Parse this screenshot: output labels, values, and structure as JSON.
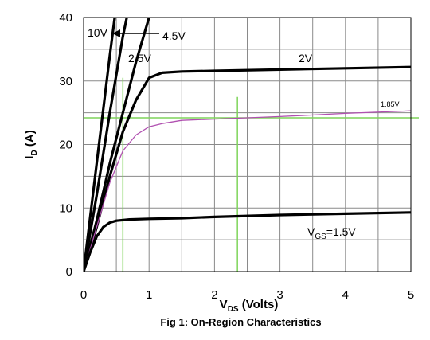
{
  "chart_data": {
    "type": "line",
    "title": "Fig 1: On-Region Characteristics",
    "xlabel": {
      "main": "V",
      "sub": "DS",
      "rest": " (Volts)"
    },
    "ylabel": {
      "main": "I",
      "sub": "D",
      "rest": " (A)"
    },
    "xlim": [
      0,
      5
    ],
    "ylim": [
      0,
      40
    ],
    "x_ticks": [
      "0",
      "1",
      "2",
      "3",
      "4",
      "5"
    ],
    "y_ticks": [
      "0",
      "10",
      "20",
      "30",
      "40"
    ],
    "grid": true,
    "series": [
      {
        "name": "10V",
        "color": "#000000",
        "x": [
          0,
          0.2,
          0.4,
          0.5
        ],
        "y": [
          0,
          17,
          34,
          42
        ]
      },
      {
        "name": "4.5V",
        "color": "#000000",
        "x": [
          0,
          0.2,
          0.4,
          0.6,
          0.7
        ],
        "y": [
          0,
          12,
          25,
          37,
          42
        ]
      },
      {
        "name": "2.5V",
        "color": "#000000",
        "x": [
          0,
          0.2,
          0.4,
          0.6,
          0.8,
          1.0
        ],
        "y": [
          0,
          8,
          17,
          25,
          33,
          40
        ]
      },
      {
        "name": "2V",
        "color": "#000000",
        "x": [
          0,
          0.2,
          0.4,
          0.6,
          0.8,
          1.0,
          1.2,
          1.5,
          2,
          3,
          4,
          5
        ],
        "y": [
          0,
          7,
          15,
          22,
          27,
          30.5,
          31.3,
          31.5,
          31.6,
          31.8,
          32,
          32.2
        ]
      },
      {
        "name": "1.85V",
        "color": "#b050b0",
        "x": [
          0,
          0.2,
          0.4,
          0.6,
          0.8,
          1.0,
          1.2,
          1.5,
          2,
          3,
          4,
          5
        ],
        "y": [
          0,
          7,
          14,
          19,
          21.5,
          22.8,
          23.3,
          23.8,
          24,
          24.4,
          24.9,
          25.3
        ]
      },
      {
        "name": "1.5V",
        "color": "#000000",
        "x": [
          0,
          0.1,
          0.2,
          0.3,
          0.4,
          0.5,
          0.7,
          1.0,
          1.5,
          2,
          3,
          4,
          5
        ],
        "y": [
          0,
          3,
          5.5,
          7,
          7.7,
          8,
          8.2,
          8.3,
          8.4,
          8.6,
          8.9,
          9.1,
          9.3
        ]
      }
    ],
    "series_labels": [
      {
        "main": "10V",
        "sub": "",
        "rest": ""
      },
      {
        "main": "4.5V",
        "sub": "",
        "rest": ""
      },
      {
        "main": "2.5V",
        "sub": "",
        "rest": ""
      },
      {
        "main": "2V",
        "sub": "",
        "rest": ""
      },
      {
        "main": "1.85V",
        "sub": "",
        "rest": ""
      },
      {
        "main": "V",
        "sub": "GS",
        "rest": "=1.5V"
      }
    ],
    "reference_lines": [
      {
        "orientation": "horizontal",
        "y": 24.2,
        "color": "#7fd45a"
      },
      {
        "orientation": "vertical",
        "x": 0.6,
        "y_range": [
          0,
          30.5
        ],
        "color": "#7fd45a"
      },
      {
        "orientation": "vertical",
        "x": 2.35,
        "y_range": [
          0,
          27.5
        ],
        "color": "#7fd45a"
      }
    ]
  }
}
